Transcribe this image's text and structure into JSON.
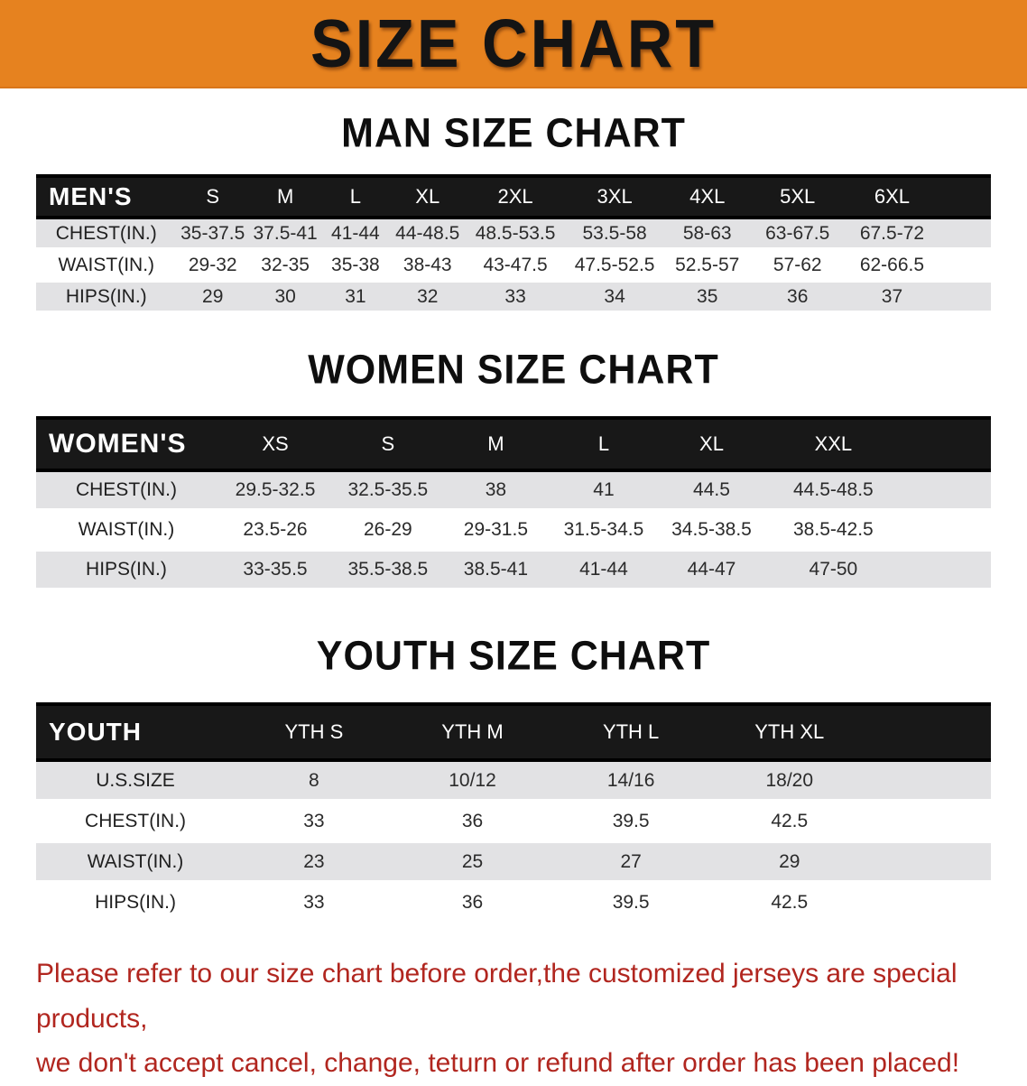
{
  "banner": {
    "title": "SIZE CHART"
  },
  "colors": {
    "banner_bg": "#e6821f",
    "header_bg": "#181818",
    "stripe": "#e2e2e4",
    "footer_red": "#b1261f"
  },
  "sections": [
    {
      "heading": "MAN SIZE CHART",
      "corner_label": "MEN'S",
      "columns": [
        "S",
        "M",
        "L",
        "XL",
        "2XL",
        "3XL",
        "4XL",
        "5XL",
        "6XL"
      ],
      "rows": [
        {
          "label": "CHEST(IN.)",
          "values": [
            "35-37.5",
            "37.5-41",
            "41-44",
            "44-48.5",
            "48.5-53.5",
            "53.5-58",
            "58-63",
            "63-67.5",
            "67.5-72"
          ]
        },
        {
          "label": "WAIST(IN.)",
          "values": [
            "29-32",
            "32-35",
            "35-38",
            "38-43",
            "43-47.5",
            "47.5-52.5",
            "52.5-57",
            "57-62",
            "62-66.5"
          ]
        },
        {
          "label": "HIPS(IN.)",
          "values": [
            "29",
            "30",
            "31",
            "32",
            "33",
            "34",
            "35",
            "36",
            "37"
          ]
        }
      ]
    },
    {
      "heading": "WOMEN SIZE CHART",
      "corner_label": "WOMEN'S",
      "columns": [
        "XS",
        "S",
        "M",
        "L",
        "XL",
        "XXL"
      ],
      "rows": [
        {
          "label": "CHEST(IN.)",
          "values": [
            "29.5-32.5",
            "32.5-35.5",
            "38",
            "41",
            "44.5",
            "44.5-48.5"
          ]
        },
        {
          "label": "WAIST(IN.)",
          "values": [
            "23.5-26",
            "26-29",
            "29-31.5",
            "31.5-34.5",
            "34.5-38.5",
            "38.5-42.5"
          ]
        },
        {
          "label": "HIPS(IN.)",
          "values": [
            "33-35.5",
            "35.5-38.5",
            "38.5-41",
            "41-44",
            "44-47",
            "47-50"
          ]
        }
      ]
    },
    {
      "heading": "YOUTH SIZE CHART",
      "corner_label": "YOUTH",
      "columns": [
        "YTH S",
        "YTH M",
        "YTH L",
        "YTH XL"
      ],
      "rows": [
        {
          "label": "U.S.SIZE",
          "values": [
            "8",
            "10/12",
            "14/16",
            "18/20"
          ]
        },
        {
          "label": "CHEST(IN.)",
          "values": [
            "33",
            "36",
            "39.5",
            "42.5"
          ]
        },
        {
          "label": "WAIST(IN.)",
          "values": [
            "23",
            "25",
            "27",
            "29"
          ]
        },
        {
          "label": "HIPS(IN.)",
          "values": [
            "33",
            "36",
            "39.5",
            "42.5"
          ]
        }
      ]
    }
  ],
  "footer": {
    "line1": "Please refer to our size chart before order,the customized jerseys are special products,",
    "line2": "we don't accept cancel, change, teturn or refund after order has been placed!"
  }
}
